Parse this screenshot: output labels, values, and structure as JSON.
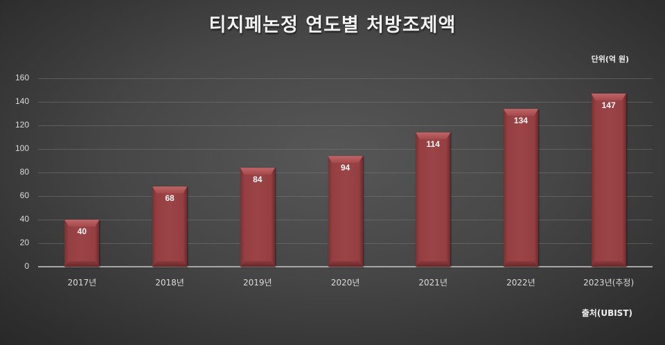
{
  "chart_data": {
    "type": "bar",
    "title": "티지페논정 연도별 처방조제액",
    "unit_label": "단위(억 원)",
    "source_label": "출처(UBIST)",
    "xlabel": "",
    "ylabel": "",
    "categories": [
      "2017년",
      "2018년",
      "2019년",
      "2020년",
      "2021년",
      "2022년",
      "2023년(추정)"
    ],
    "values": [
      40,
      68,
      84,
      94,
      114,
      134,
      147
    ],
    "value_labels": [
      "40",
      "68",
      "84",
      "94",
      "114",
      "134",
      "147"
    ],
    "ylim": [
      0,
      160
    ],
    "yticks": [
      "0",
      "20",
      "40",
      "60",
      "80",
      "100",
      "120",
      "140",
      "160"
    ],
    "grid": true,
    "legend": "none",
    "bar_color": "#963f42",
    "background": "#464646"
  }
}
